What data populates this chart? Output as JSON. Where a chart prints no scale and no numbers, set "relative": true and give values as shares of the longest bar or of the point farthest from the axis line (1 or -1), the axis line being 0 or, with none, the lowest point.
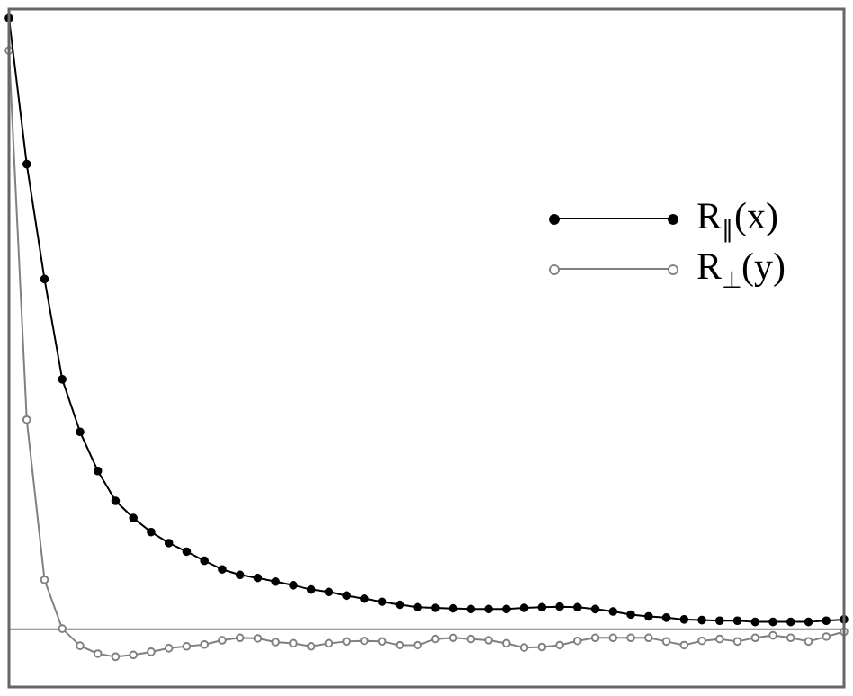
{
  "chart_data": {
    "type": "line",
    "relative": true,
    "marker": "circle",
    "legend": "top right",
    "grid": false,
    "categories": [
      null,
      null,
      null,
      null,
      null,
      null,
      null,
      null,
      null,
      null,
      null,
      null,
      null,
      null,
      null,
      null,
      null,
      null,
      null,
      null,
      null,
      null,
      null,
      null,
      null,
      null,
      null,
      null,
      null,
      null,
      null,
      null,
      null,
      null,
      null,
      null,
      null,
      null,
      null,
      null,
      null,
      null,
      null,
      null,
      null,
      null,
      null,
      null
    ],
    "series": [
      {
        "name": "R$_{∥}$(x)",
        "color": "#000000",
        "values": [
          1,
          0.761,
          0.573,
          0.409,
          0.323,
          0.259,
          0.21,
          0.182,
          0.159,
          0.141,
          0.127,
          0.112,
          0.098,
          0.089,
          0.084,
          0.078,
          0.072,
          0.065,
          0.061,
          0.055,
          0.05,
          0.045,
          0.04,
          0.036,
          0.035,
          0.034,
          0.033,
          0.033,
          0.033,
          0.035,
          0.036,
          0.037,
          0.036,
          0.033,
          0.029,
          0.024,
          0.021,
          0.019,
          0.016,
          0.015,
          0.014,
          0.014,
          0.012,
          0.012,
          0.012,
          0.012,
          0.014,
          0.016
        ]
      },
      {
        "name": "R$_{⊥}$(y)",
        "color": "#808080",
        "values": [
          0.947,
          0.343,
          0.081,
          0.001,
          -0.027,
          -0.04,
          -0.045,
          -0.042,
          -0.037,
          -0.031,
          -0.028,
          -0.025,
          -0.018,
          -0.014,
          -0.015,
          -0.021,
          -0.023,
          -0.028,
          -0.023,
          -0.02,
          -0.019,
          -0.02,
          -0.026,
          -0.026,
          -0.016,
          -0.014,
          -0.016,
          -0.018,
          -0.023,
          -0.03,
          -0.029,
          -0.026,
          -0.019,
          -0.014,
          -0.014,
          -0.014,
          -0.014,
          -0.02,
          -0.026,
          -0.019,
          -0.016,
          -0.02,
          -0.014,
          -0.01,
          -0.014,
          -0.02,
          -0.012,
          -0.004
        ]
      }
    ],
    "ref_lines": [
      {
        "axis": "y",
        "value": 0,
        "color": "#808080"
      }
    ]
  }
}
